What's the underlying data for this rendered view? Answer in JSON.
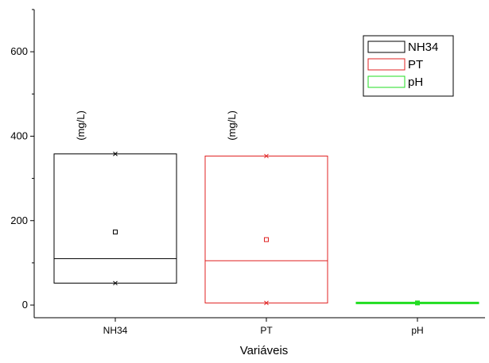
{
  "chart_data": {
    "type": "box",
    "xlabel": "Variáveis",
    "ylabel": "",
    "ylim": [
      -30,
      700
    ],
    "yticks": [
      0,
      200,
      400,
      600
    ],
    "legend_position": "top-right",
    "unit_annotation": "(mg/L)",
    "categories": [
      "NH34",
      "PT",
      "pH"
    ],
    "series": [
      {
        "name": "NH34",
        "color": "#000000",
        "q1": 52,
        "median": 110,
        "q3": 358,
        "mean": 173,
        "min": 52,
        "max": 358,
        "unit_label": true
      },
      {
        "name": "PT",
        "color": "#e02020",
        "q1": 5,
        "median": 105,
        "q3": 353,
        "mean": 155,
        "min": 5,
        "max": 353,
        "unit_label": true
      },
      {
        "name": "pH",
        "color": "#22dd22",
        "q1": 4,
        "median": 5,
        "q3": 6,
        "mean": 5,
        "min": 4,
        "max": 6,
        "unit_label": false
      }
    ]
  }
}
